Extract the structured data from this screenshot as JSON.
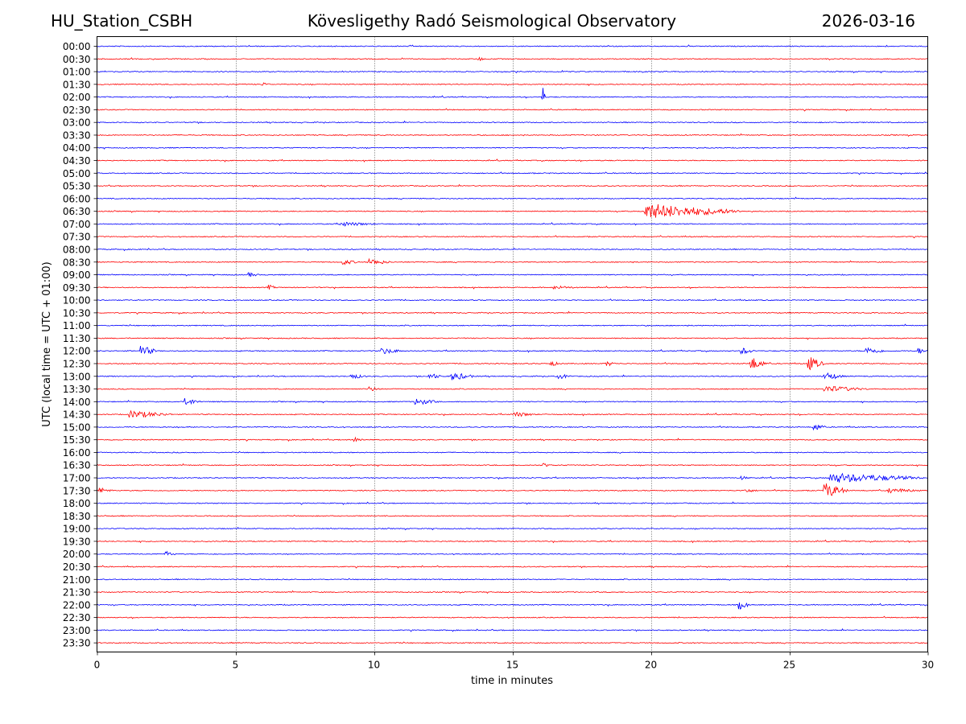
{
  "header": {
    "station": "HU_Station_CSBH",
    "title": "Kövesligethy Radó Seismological Observatory",
    "date": "2026-03-16"
  },
  "chart_data": {
    "type": "line",
    "title": "Kövesligethy Radó Seismological Observatory",
    "xlabel": "time in minutes",
    "ylabel": "UTC (local time = UTC + 01:00)",
    "xlim": [
      0,
      30
    ],
    "x_ticks": [
      0,
      5,
      10,
      15,
      20,
      25,
      30
    ],
    "grid": "vertical dotted lines at x = 5, 10, 15, 20, 25",
    "colors": [
      "#0000ff",
      "#ff0000"
    ],
    "row_labels": [
      "00:00",
      "00:30",
      "01:00",
      "01:30",
      "02:00",
      "02:30",
      "03:00",
      "03:30",
      "04:00",
      "04:30",
      "05:00",
      "05:30",
      "06:00",
      "06:30",
      "07:00",
      "07:30",
      "08:00",
      "08:30",
      "09:00",
      "09:30",
      "10:00",
      "10:30",
      "11:00",
      "11:30",
      "12:00",
      "12:30",
      "13:00",
      "13:30",
      "14:00",
      "14:30",
      "15:00",
      "15:30",
      "16:00",
      "16:30",
      "17:00",
      "17:30",
      "18:00",
      "18:30",
      "19:00",
      "19:30",
      "20:00",
      "20:30",
      "21:00",
      "21:30",
      "22:00",
      "22:30",
      "23:00",
      "23:30"
    ],
    "events": [
      {
        "row": "00:30",
        "t": 13.8,
        "amp": 0.25,
        "dur": 0.3
      },
      {
        "row": "01:30",
        "t": 6.0,
        "amp": 0.25,
        "dur": 0.3
      },
      {
        "row": "02:00",
        "t": 16.1,
        "amp": 1.5,
        "dur": 0.08
      },
      {
        "row": "06:30",
        "t": 19.8,
        "amp": 1.0,
        "dur": 3.5
      },
      {
        "row": "07:00",
        "t": 8.8,
        "amp": 0.3,
        "dur": 1.5
      },
      {
        "row": "08:30",
        "t": 8.9,
        "amp": 0.35,
        "dur": 0.6
      },
      {
        "row": "08:30",
        "t": 9.8,
        "amp": 0.45,
        "dur": 0.9
      },
      {
        "row": "09:00",
        "t": 5.5,
        "amp": 0.3,
        "dur": 0.4
      },
      {
        "row": "09:30",
        "t": 6.2,
        "amp": 0.35,
        "dur": 0.3
      },
      {
        "row": "09:30",
        "t": 16.5,
        "amp": 0.25,
        "dur": 1.0
      },
      {
        "row": "12:00",
        "t": 1.6,
        "amp": 0.7,
        "dur": 0.6
      },
      {
        "row": "12:00",
        "t": 10.3,
        "amp": 0.4,
        "dur": 0.8
      },
      {
        "row": "12:00",
        "t": 23.3,
        "amp": 0.45,
        "dur": 0.5
      },
      {
        "row": "12:00",
        "t": 27.8,
        "amp": 0.5,
        "dur": 0.7
      },
      {
        "row": "12:00",
        "t": 29.7,
        "amp": 0.4,
        "dur": 0.3
      },
      {
        "row": "12:30",
        "t": 16.4,
        "amp": 0.4,
        "dur": 0.3
      },
      {
        "row": "12:30",
        "t": 18.4,
        "amp": 0.35,
        "dur": 0.4
      },
      {
        "row": "12:30",
        "t": 23.6,
        "amp": 0.9,
        "dur": 0.6
      },
      {
        "row": "12:30",
        "t": 25.7,
        "amp": 0.9,
        "dur": 0.6
      },
      {
        "row": "13:00",
        "t": 9.2,
        "amp": 0.35,
        "dur": 0.6
      },
      {
        "row": "13:00",
        "t": 12.0,
        "amp": 0.45,
        "dur": 0.5
      },
      {
        "row": "13:00",
        "t": 12.8,
        "amp": 0.55,
        "dur": 0.9
      },
      {
        "row": "13:00",
        "t": 16.7,
        "amp": 0.35,
        "dur": 0.5
      },
      {
        "row": "13:00",
        "t": 26.3,
        "amp": 0.55,
        "dur": 0.7
      },
      {
        "row": "13:30",
        "t": 9.8,
        "amp": 0.35,
        "dur": 0.5
      },
      {
        "row": "13:30",
        "t": 26.3,
        "amp": 0.45,
        "dur": 1.6
      },
      {
        "row": "14:00",
        "t": 3.2,
        "amp": 0.5,
        "dur": 0.6
      },
      {
        "row": "14:00",
        "t": 11.5,
        "amp": 0.45,
        "dur": 0.9
      },
      {
        "row": "14:30",
        "t": 1.2,
        "amp": 0.5,
        "dur": 1.6
      },
      {
        "row": "14:30",
        "t": 15.1,
        "amp": 0.35,
        "dur": 0.8
      },
      {
        "row": "15:00",
        "t": 25.9,
        "amp": 0.55,
        "dur": 0.4
      },
      {
        "row": "15:30",
        "t": 9.3,
        "amp": 0.35,
        "dur": 0.4
      },
      {
        "row": "16:30",
        "t": 16.1,
        "amp": 0.3,
        "dur": 0.3
      },
      {
        "row": "17:00",
        "t": 23.2,
        "amp": 0.3,
        "dur": 0.4
      },
      {
        "row": "17:00",
        "t": 26.5,
        "amp": 0.65,
        "dur": 3.5
      },
      {
        "row": "17:30",
        "t": 0.1,
        "amp": 0.4,
        "dur": 0.5
      },
      {
        "row": "17:30",
        "t": 23.4,
        "amp": 0.3,
        "dur": 0.5
      },
      {
        "row": "17:30",
        "t": 26.3,
        "amp": 1.0,
        "dur": 0.8
      },
      {
        "row": "17:30",
        "t": 28.6,
        "amp": 0.35,
        "dur": 1.2
      },
      {
        "row": "20:00",
        "t": 2.5,
        "amp": 0.35,
        "dur": 0.4
      },
      {
        "row": "22:00",
        "t": 23.2,
        "amp": 0.6,
        "dur": 0.4
      }
    ]
  }
}
